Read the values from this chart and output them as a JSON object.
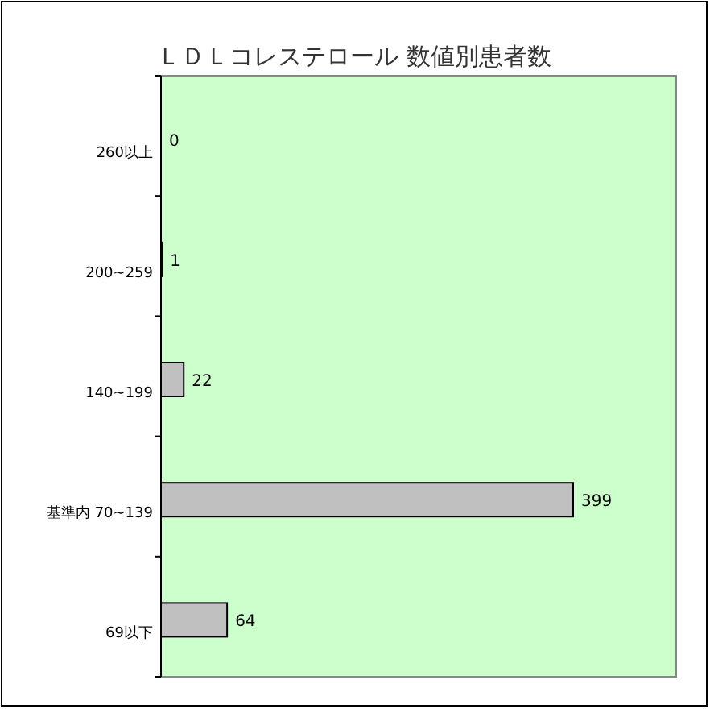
{
  "chart_data": {
    "type": "bar",
    "orientation": "horizontal",
    "title": "ＬＤＬコレステロール 数値別患者数",
    "categories": [
      "260以上",
      "200~259",
      "140~199",
      "基準内 70~139",
      "69以下"
    ],
    "values": [
      0,
      1,
      22,
      399,
      64
    ],
    "color": "#c0c0c0",
    "data_labels": true,
    "grid": false
  }
}
